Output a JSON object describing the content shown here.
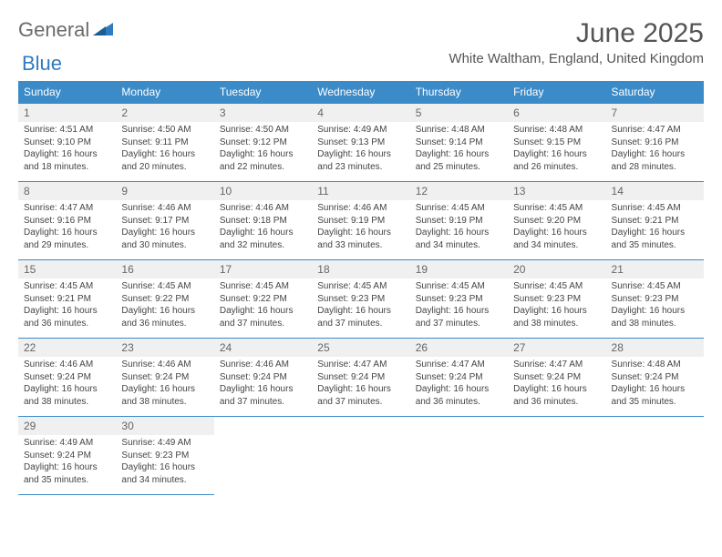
{
  "logo": {
    "general": "General",
    "blue": "Blue"
  },
  "title": "June 2025",
  "location": "White Waltham, England, United Kingdom",
  "colors": {
    "header_bg": "#3b8bc9",
    "header_text": "#ffffff",
    "border": "#3b8bc9",
    "daynum_bg": "#f0f0f0",
    "text": "#444444",
    "logo_grey": "#6b6b6b",
    "logo_blue": "#2f7bbf"
  },
  "weekdays": [
    "Sunday",
    "Monday",
    "Tuesday",
    "Wednesday",
    "Thursday",
    "Friday",
    "Saturday"
  ],
  "weeks": [
    [
      {
        "day": 1,
        "sunrise": "Sunrise: 4:51 AM",
        "sunset": "Sunset: 9:10 PM",
        "daylight": "Daylight: 16 hours and 18 minutes."
      },
      {
        "day": 2,
        "sunrise": "Sunrise: 4:50 AM",
        "sunset": "Sunset: 9:11 PM",
        "daylight": "Daylight: 16 hours and 20 minutes."
      },
      {
        "day": 3,
        "sunrise": "Sunrise: 4:50 AM",
        "sunset": "Sunset: 9:12 PM",
        "daylight": "Daylight: 16 hours and 22 minutes."
      },
      {
        "day": 4,
        "sunrise": "Sunrise: 4:49 AM",
        "sunset": "Sunset: 9:13 PM",
        "daylight": "Daylight: 16 hours and 23 minutes."
      },
      {
        "day": 5,
        "sunrise": "Sunrise: 4:48 AM",
        "sunset": "Sunset: 9:14 PM",
        "daylight": "Daylight: 16 hours and 25 minutes."
      },
      {
        "day": 6,
        "sunrise": "Sunrise: 4:48 AM",
        "sunset": "Sunset: 9:15 PM",
        "daylight": "Daylight: 16 hours and 26 minutes."
      },
      {
        "day": 7,
        "sunrise": "Sunrise: 4:47 AM",
        "sunset": "Sunset: 9:16 PM",
        "daylight": "Daylight: 16 hours and 28 minutes."
      }
    ],
    [
      {
        "day": 8,
        "sunrise": "Sunrise: 4:47 AM",
        "sunset": "Sunset: 9:16 PM",
        "daylight": "Daylight: 16 hours and 29 minutes."
      },
      {
        "day": 9,
        "sunrise": "Sunrise: 4:46 AM",
        "sunset": "Sunset: 9:17 PM",
        "daylight": "Daylight: 16 hours and 30 minutes."
      },
      {
        "day": 10,
        "sunrise": "Sunrise: 4:46 AM",
        "sunset": "Sunset: 9:18 PM",
        "daylight": "Daylight: 16 hours and 32 minutes."
      },
      {
        "day": 11,
        "sunrise": "Sunrise: 4:46 AM",
        "sunset": "Sunset: 9:19 PM",
        "daylight": "Daylight: 16 hours and 33 minutes."
      },
      {
        "day": 12,
        "sunrise": "Sunrise: 4:45 AM",
        "sunset": "Sunset: 9:19 PM",
        "daylight": "Daylight: 16 hours and 34 minutes."
      },
      {
        "day": 13,
        "sunrise": "Sunrise: 4:45 AM",
        "sunset": "Sunset: 9:20 PM",
        "daylight": "Daylight: 16 hours and 34 minutes."
      },
      {
        "day": 14,
        "sunrise": "Sunrise: 4:45 AM",
        "sunset": "Sunset: 9:21 PM",
        "daylight": "Daylight: 16 hours and 35 minutes."
      }
    ],
    [
      {
        "day": 15,
        "sunrise": "Sunrise: 4:45 AM",
        "sunset": "Sunset: 9:21 PM",
        "daylight": "Daylight: 16 hours and 36 minutes."
      },
      {
        "day": 16,
        "sunrise": "Sunrise: 4:45 AM",
        "sunset": "Sunset: 9:22 PM",
        "daylight": "Daylight: 16 hours and 36 minutes."
      },
      {
        "day": 17,
        "sunrise": "Sunrise: 4:45 AM",
        "sunset": "Sunset: 9:22 PM",
        "daylight": "Daylight: 16 hours and 37 minutes."
      },
      {
        "day": 18,
        "sunrise": "Sunrise: 4:45 AM",
        "sunset": "Sunset: 9:23 PM",
        "daylight": "Daylight: 16 hours and 37 minutes."
      },
      {
        "day": 19,
        "sunrise": "Sunrise: 4:45 AM",
        "sunset": "Sunset: 9:23 PM",
        "daylight": "Daylight: 16 hours and 37 minutes."
      },
      {
        "day": 20,
        "sunrise": "Sunrise: 4:45 AM",
        "sunset": "Sunset: 9:23 PM",
        "daylight": "Daylight: 16 hours and 38 minutes."
      },
      {
        "day": 21,
        "sunrise": "Sunrise: 4:45 AM",
        "sunset": "Sunset: 9:23 PM",
        "daylight": "Daylight: 16 hours and 38 minutes."
      }
    ],
    [
      {
        "day": 22,
        "sunrise": "Sunrise: 4:46 AM",
        "sunset": "Sunset: 9:24 PM",
        "daylight": "Daylight: 16 hours and 38 minutes."
      },
      {
        "day": 23,
        "sunrise": "Sunrise: 4:46 AM",
        "sunset": "Sunset: 9:24 PM",
        "daylight": "Daylight: 16 hours and 38 minutes."
      },
      {
        "day": 24,
        "sunrise": "Sunrise: 4:46 AM",
        "sunset": "Sunset: 9:24 PM",
        "daylight": "Daylight: 16 hours and 37 minutes."
      },
      {
        "day": 25,
        "sunrise": "Sunrise: 4:47 AM",
        "sunset": "Sunset: 9:24 PM",
        "daylight": "Daylight: 16 hours and 37 minutes."
      },
      {
        "day": 26,
        "sunrise": "Sunrise: 4:47 AM",
        "sunset": "Sunset: 9:24 PM",
        "daylight": "Daylight: 16 hours and 36 minutes."
      },
      {
        "day": 27,
        "sunrise": "Sunrise: 4:47 AM",
        "sunset": "Sunset: 9:24 PM",
        "daylight": "Daylight: 16 hours and 36 minutes."
      },
      {
        "day": 28,
        "sunrise": "Sunrise: 4:48 AM",
        "sunset": "Sunset: 9:24 PM",
        "daylight": "Daylight: 16 hours and 35 minutes."
      }
    ],
    [
      {
        "day": 29,
        "sunrise": "Sunrise: 4:49 AM",
        "sunset": "Sunset: 9:24 PM",
        "daylight": "Daylight: 16 hours and 35 minutes."
      },
      {
        "day": 30,
        "sunrise": "Sunrise: 4:49 AM",
        "sunset": "Sunset: 9:23 PM",
        "daylight": "Daylight: 16 hours and 34 minutes."
      },
      null,
      null,
      null,
      null,
      null
    ]
  ]
}
